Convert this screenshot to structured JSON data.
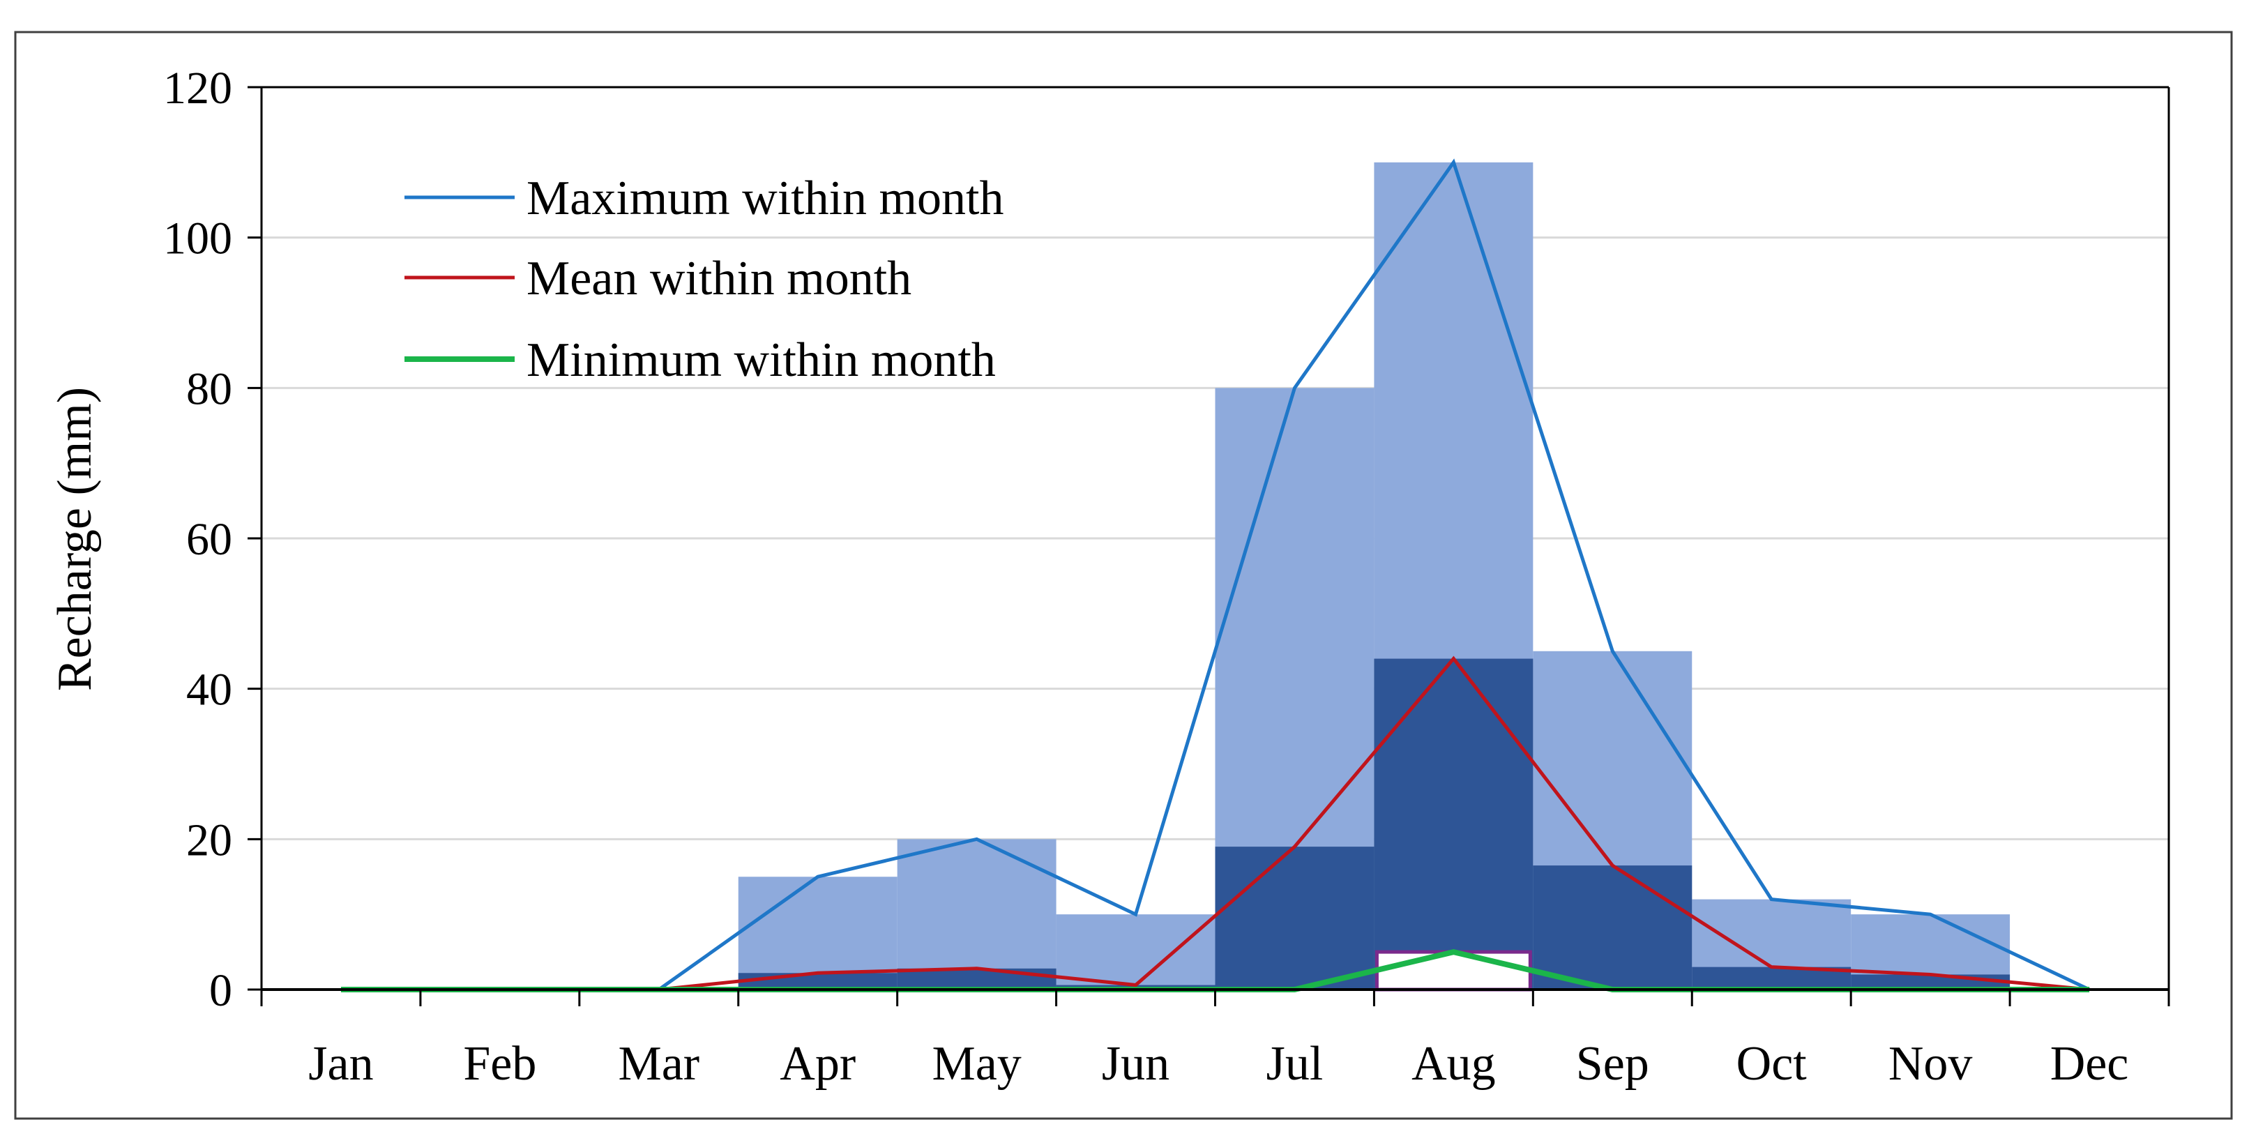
{
  "chart_data": {
    "type": "bar",
    "categories": [
      "Jan",
      "Feb",
      "Mar",
      "Apr",
      "May",
      "Jun",
      "Jul",
      "Aug",
      "Sep",
      "Oct",
      "Nov",
      "Dec"
    ],
    "ylabel": "Recharge (mm)",
    "xlabel": "",
    "ylim": [
      0,
      120
    ],
    "yticks": [
      "0",
      "20",
      "40",
      "60",
      "80",
      "100",
      "120"
    ],
    "grid": true,
    "legend_position": "top-left",
    "series": [
      {
        "name": "Maximum within month",
        "kind": "line",
        "color": "#1f77c8",
        "values": [
          0,
          0,
          0,
          15,
          20,
          10,
          80,
          110,
          45,
          12,
          10,
          0
        ]
      },
      {
        "name": "Mean within month",
        "kind": "line",
        "color": "#c0141c",
        "values": [
          0,
          0,
          0,
          2.2,
          2.8,
          0.6,
          19,
          44,
          16.5,
          3,
          2,
          0
        ]
      },
      {
        "name": "Minimum within month",
        "kind": "line",
        "color": "#1bb54a",
        "values": [
          0,
          0,
          0,
          0,
          0,
          0,
          0,
          5,
          0,
          0,
          0,
          0
        ]
      }
    ],
    "bars": {
      "max_color": "#8eaadc",
      "mean_color": "#2e5596",
      "min_color": "#ffffff",
      "min_border": "#7a2a8c"
    }
  }
}
